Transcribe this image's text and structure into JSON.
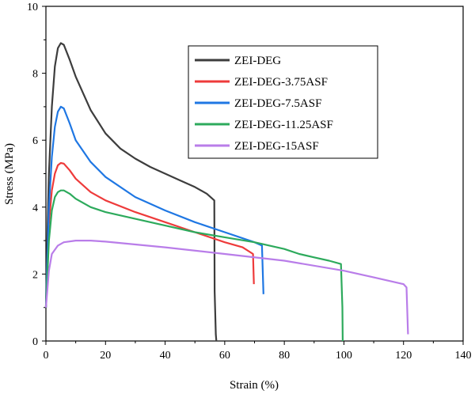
{
  "chart_data": {
    "type": "line",
    "title": "",
    "xlabel": "Strain (%)",
    "ylabel": "Stress (MPa)",
    "xlim": [
      0,
      140
    ],
    "ylim": [
      0,
      10
    ],
    "xticks": [
      0,
      20,
      40,
      60,
      80,
      100,
      120,
      140
    ],
    "yticks": [
      0,
      2,
      4,
      6,
      8,
      10
    ],
    "grid": false,
    "legend_position": "top-center",
    "series": [
      {
        "name": "ZEI-DEG",
        "color": "#3d3d3d",
        "points": [
          [
            0,
            1.0
          ],
          [
            0.5,
            3.2
          ],
          [
            1,
            5.0
          ],
          [
            2,
            7.0
          ],
          [
            3,
            8.2
          ],
          [
            4,
            8.75
          ],
          [
            5,
            8.9
          ],
          [
            6,
            8.85
          ],
          [
            8,
            8.4
          ],
          [
            10,
            7.9
          ],
          [
            15,
            6.9
          ],
          [
            20,
            6.2
          ],
          [
            25,
            5.75
          ],
          [
            30,
            5.45
          ],
          [
            35,
            5.2
          ],
          [
            40,
            5.0
          ],
          [
            45,
            4.8
          ],
          [
            50,
            4.6
          ],
          [
            54,
            4.4
          ],
          [
            56.5,
            4.2
          ],
          [
            56.6,
            1.5
          ],
          [
            57,
            0.2
          ],
          [
            57.2,
            0
          ]
        ]
      },
      {
        "name": "ZEI-DEG-3.75ASF",
        "color": "#ee3b3b",
        "points": [
          [
            0,
            1.0
          ],
          [
            1,
            3.5
          ],
          [
            2,
            4.5
          ],
          [
            3,
            5.0
          ],
          [
            4,
            5.25
          ],
          [
            5,
            5.32
          ],
          [
            6,
            5.3
          ],
          [
            8,
            5.1
          ],
          [
            10,
            4.85
          ],
          [
            15,
            4.45
          ],
          [
            20,
            4.2
          ],
          [
            30,
            3.85
          ],
          [
            40,
            3.55
          ],
          [
            50,
            3.25
          ],
          [
            60,
            2.95
          ],
          [
            66,
            2.8
          ],
          [
            69.5,
            2.6
          ],
          [
            69.8,
            1.7
          ]
        ]
      },
      {
        "name": "ZEI-DEG-7.5ASF",
        "color": "#1f77e3",
        "points": [
          [
            0,
            1.0
          ],
          [
            1,
            4.0
          ],
          [
            2,
            5.5
          ],
          [
            3,
            6.4
          ],
          [
            4,
            6.85
          ],
          [
            5,
            7.0
          ],
          [
            6,
            6.95
          ],
          [
            8,
            6.5
          ],
          [
            10,
            6.0
          ],
          [
            15,
            5.35
          ],
          [
            20,
            4.9
          ],
          [
            30,
            4.3
          ],
          [
            40,
            3.9
          ],
          [
            50,
            3.55
          ],
          [
            60,
            3.25
          ],
          [
            70,
            2.95
          ],
          [
            72.5,
            2.85
          ],
          [
            73,
            1.4
          ]
        ]
      },
      {
        "name": "ZEI-DEG-11.25ASF",
        "color": "#2daa5c",
        "points": [
          [
            0,
            1.0
          ],
          [
            1,
            3.0
          ],
          [
            2,
            3.9
          ],
          [
            3,
            4.3
          ],
          [
            4,
            4.45
          ],
          [
            5,
            4.5
          ],
          [
            6,
            4.5
          ],
          [
            8,
            4.4
          ],
          [
            10,
            4.25
          ],
          [
            15,
            4.0
          ],
          [
            20,
            3.85
          ],
          [
            30,
            3.65
          ],
          [
            40,
            3.45
          ],
          [
            50,
            3.25
          ],
          [
            60,
            3.1
          ],
          [
            70,
            2.95
          ],
          [
            75,
            2.85
          ],
          [
            80,
            2.75
          ],
          [
            85,
            2.6
          ],
          [
            90,
            2.5
          ],
          [
            95,
            2.4
          ],
          [
            99,
            2.3
          ],
          [
            99.5,
            1.0
          ],
          [
            99.6,
            0
          ]
        ]
      },
      {
        "name": "ZEI-DEG-15ASF",
        "color": "#b97de9",
        "points": [
          [
            0,
            1.0
          ],
          [
            1,
            2.1
          ],
          [
            2,
            2.6
          ],
          [
            4,
            2.85
          ],
          [
            6,
            2.95
          ],
          [
            10,
            3.0
          ],
          [
            15,
            3.0
          ],
          [
            20,
            2.97
          ],
          [
            40,
            2.8
          ],
          [
            60,
            2.6
          ],
          [
            80,
            2.4
          ],
          [
            100,
            2.1
          ],
          [
            110,
            1.9
          ],
          [
            120,
            1.7
          ],
          [
            121,
            1.6
          ],
          [
            121.5,
            0.2
          ]
        ]
      }
    ]
  }
}
